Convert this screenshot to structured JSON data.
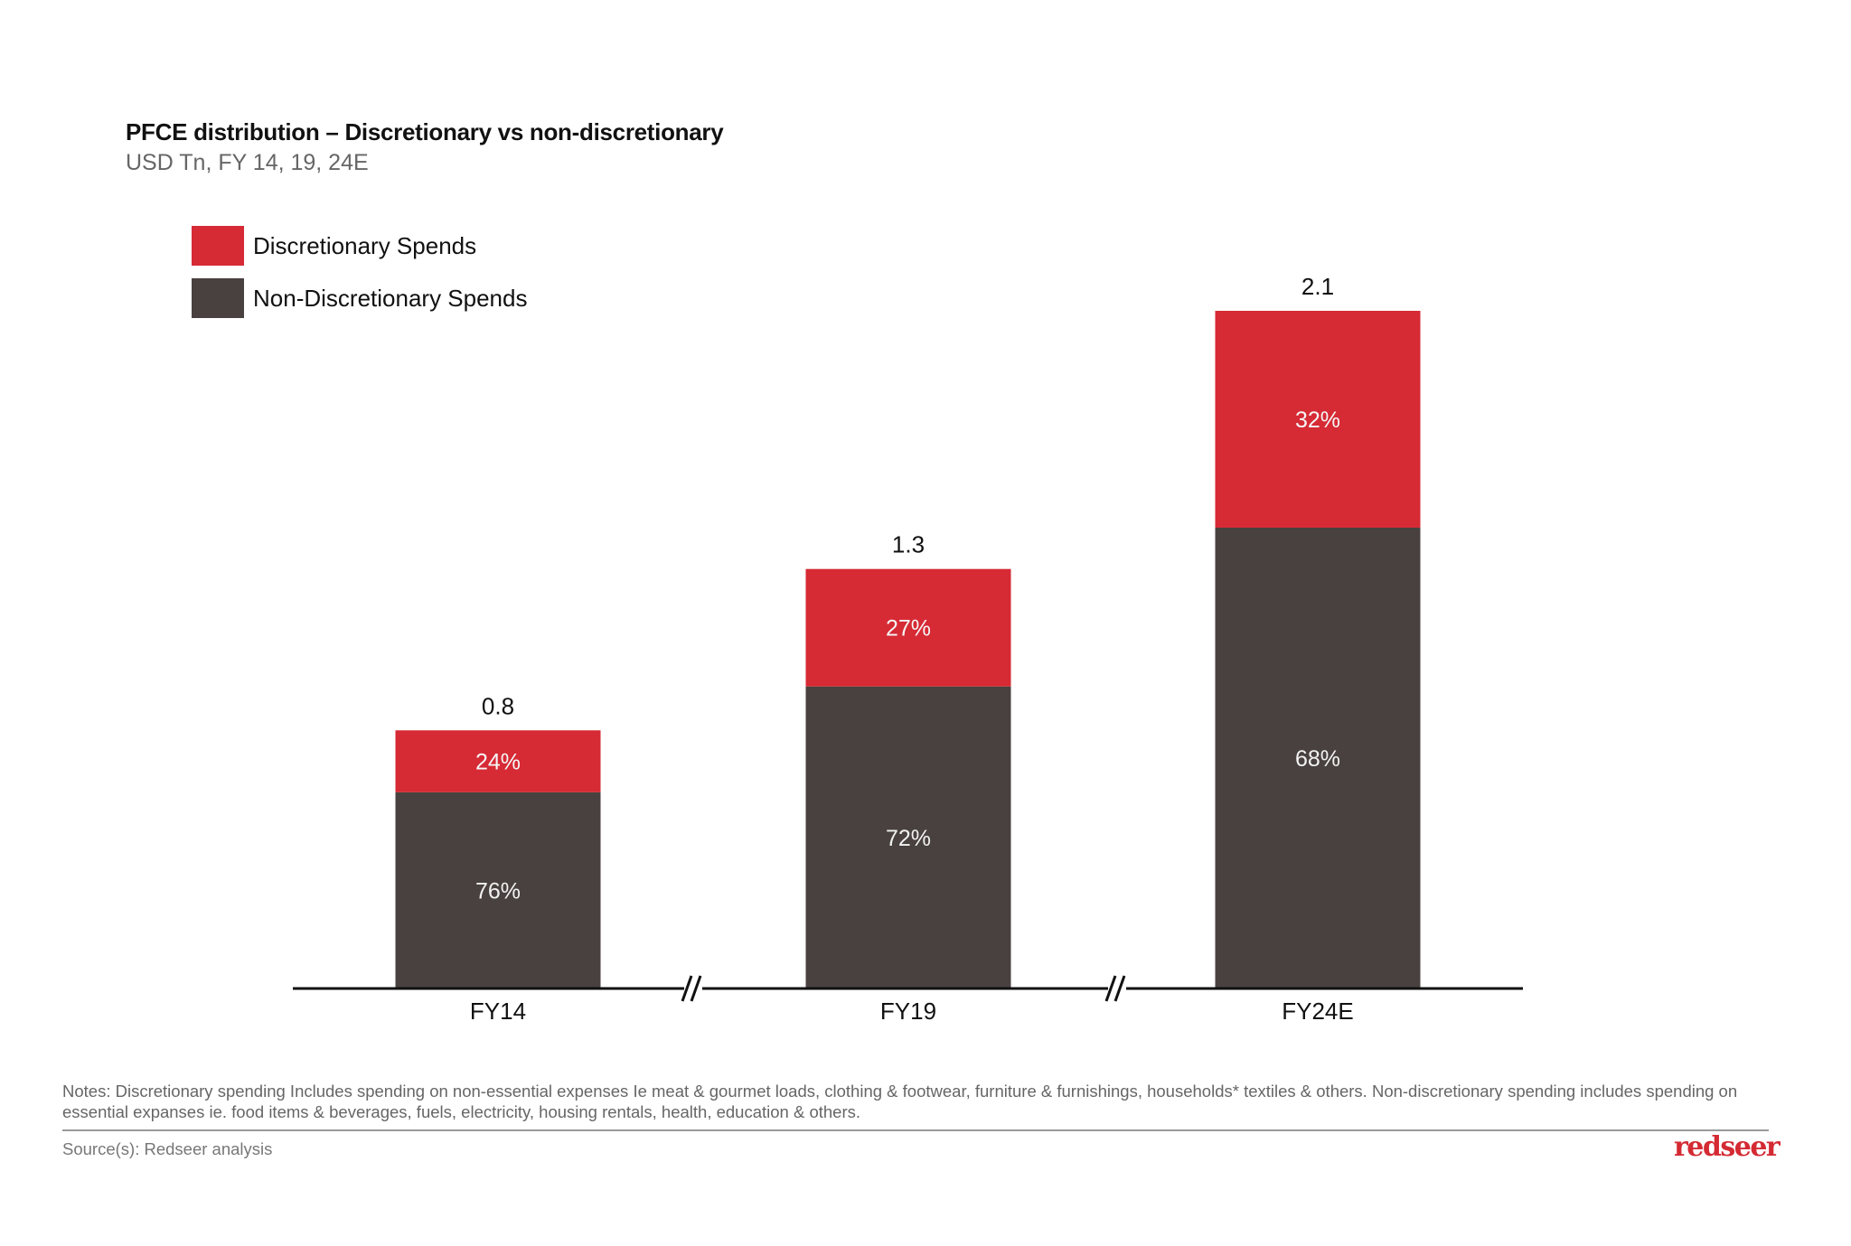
{
  "chart_data": {
    "type": "bar",
    "stacked": true,
    "title": "PFCE distribution – Discretionary vs non-discretionary",
    "subtitle": "USD Tn, FY 14, 19, 24E",
    "xlabel": "",
    "ylabel": "",
    "grid": false,
    "legend_position": "top-left",
    "axis_breaks": true,
    "categories": [
      "FY14",
      "FY19",
      "FY24E"
    ],
    "totals": [
      0.8,
      1.3,
      2.1
    ],
    "total_labels": [
      "0.8",
      "1.3",
      "2.1"
    ],
    "series": [
      {
        "name": "Non-Discretionary Spends",
        "share_pct": [
          76,
          72,
          68
        ],
        "labels": [
          "76%",
          "72%",
          "68%"
        ],
        "color": "#48413f"
      },
      {
        "name": "Discretionary Spends",
        "share_pct": [
          24,
          27,
          32
        ],
        "labels": [
          "24%",
          "27%",
          "32%"
        ],
        "color": "#d62a35"
      }
    ]
  },
  "legend": [
    {
      "label": "Discretionary Spends",
      "color": "#d62a35"
    },
    {
      "label": "Non-Discretionary Spends",
      "color": "#48413f"
    }
  ],
  "footer": {
    "notes": "Notes: Discretionary spending Includes spending on non-essential expenses Ie meat & gourmet loads, clothing & footwear, furniture & furnishings, households* textiles & others. Non-discretionary spending includes spending on essential expanses ie. food items & beverages, fuels, electricity, housing rentals, health, education & others.",
    "source": "Source(s): Redseer analysis",
    "logo": "redseer"
  }
}
